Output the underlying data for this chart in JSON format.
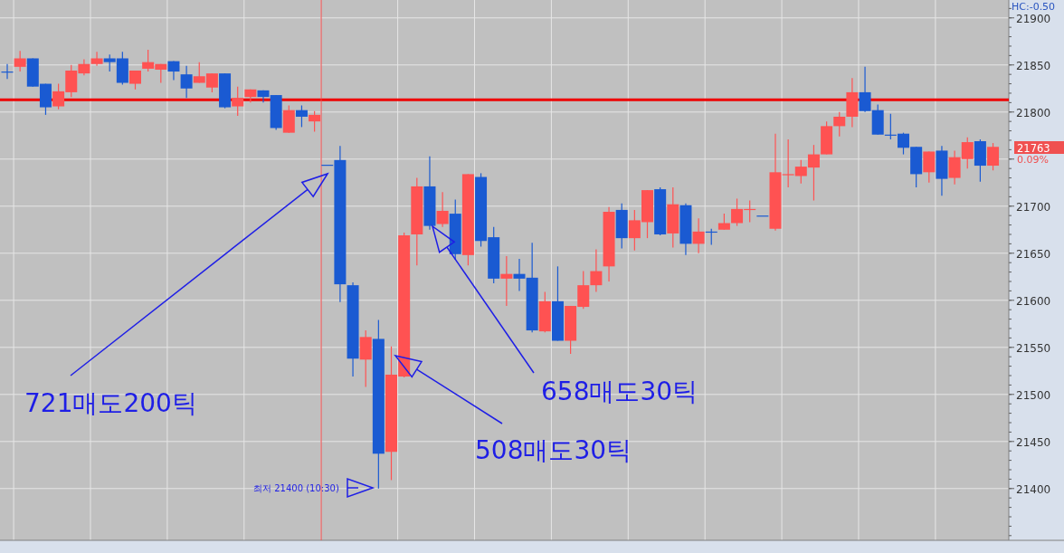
{
  "chart_data": {
    "type": "candlestick",
    "categories": [
      null,
      null,
      null,
      null,
      null,
      null,
      null,
      null,
      null,
      null,
      null,
      null,
      null,
      null,
      null,
      null,
      null,
      null,
      null,
      null,
      null,
      null,
      null,
      null,
      null,
      null,
      null,
      null,
      null,
      null,
      null,
      null,
      null,
      null,
      null,
      null,
      null,
      null,
      null,
      null,
      null,
      null,
      null,
      null,
      null,
      null,
      null,
      null,
      null,
      null,
      null,
      null,
      null,
      null,
      null,
      null,
      null,
      null,
      null,
      null,
      null,
      null,
      null,
      null,
      null,
      null,
      null,
      null,
      null,
      null,
      null,
      null,
      null,
      null,
      null,
      null,
      null,
      null
    ],
    "ohlc": [
      [
        21843,
        21851,
        21835,
        21842
      ],
      [
        21848,
        21865,
        21843,
        21857
      ],
      [
        21857,
        21857,
        21827,
        21827
      ],
      [
        21830,
        21830,
        21797,
        21805
      ],
      [
        21806,
        21830,
        21803,
        21822
      ],
      [
        21821,
        21850,
        21816,
        21844
      ],
      [
        21841,
        21856,
        21839,
        21851
      ],
      [
        21851,
        21864,
        21849,
        21857
      ],
      [
        21857,
        21861,
        21843,
        21853
      ],
      [
        21857,
        21864,
        21829,
        21831
      ],
      [
        21830,
        21844,
        21824,
        21844
      ],
      [
        21846,
        21866,
        21843,
        21853
      ],
      [
        21845,
        21851,
        21831,
        21851
      ],
      [
        21854,
        21854,
        21834,
        21843
      ],
      [
        21840,
        21849,
        21815,
        21825
      ],
      [
        21831,
        21853,
        21831,
        21838
      ],
      [
        21826,
        21841,
        21821,
        21841
      ],
      [
        21841,
        21841,
        21804,
        21805
      ],
      [
        21806,
        21827,
        21796,
        21815
      ],
      [
        21816,
        21824,
        21810,
        21824
      ],
      [
        21823,
        21823,
        21810,
        21816
      ],
      [
        21818,
        21818,
        21781,
        21783
      ],
      [
        21778,
        21807,
        21778,
        21802
      ],
      [
        21802,
        21807,
        21784,
        21795
      ],
      [
        21790,
        21801,
        21779,
        21797
      ],
      [
        21744,
        21744,
        21744,
        21744
      ],
      [
        21749,
        21764,
        21598,
        21617
      ],
      [
        21616,
        21619,
        21519,
        21538
      ],
      [
        21537,
        21568,
        21508,
        21561
      ],
      [
        21559,
        21579,
        21400,
        21437
      ],
      [
        21439,
        21551,
        21409,
        21521
      ],
      [
        21519,
        21672,
        21518,
        21669
      ],
      [
        21670,
        21730,
        21637,
        21721
      ],
      [
        21721,
        21753,
        21675,
        21679
      ],
      [
        21681,
        21715,
        21678,
        21695
      ],
      [
        21692,
        21707,
        21643,
        21649
      ],
      [
        21648,
        21734,
        21637,
        21734
      ],
      [
        21731,
        21735,
        21657,
        21663
      ],
      [
        21667,
        21678,
        21618,
        21623
      ],
      [
        21623,
        21647,
        21594,
        21628
      ],
      [
        21628,
        21644,
        21610,
        21623
      ],
      [
        21624,
        21661,
        21566,
        21568
      ],
      [
        21567,
        21609,
        21566,
        21599
      ],
      [
        21599,
        21636,
        21557,
        21557
      ],
      [
        21557,
        21594,
        21543,
        21594
      ],
      [
        21593,
        21631,
        21591,
        21616
      ],
      [
        21616,
        21654,
        21609,
        21631
      ],
      [
        21636,
        21699,
        21620,
        21694
      ],
      [
        21696,
        21703,
        21655,
        21666
      ],
      [
        21666,
        21696,
        21653,
        21685
      ],
      [
        21683,
        21717,
        21666,
        21717
      ],
      [
        21718,
        21720,
        21669,
        21670
      ],
      [
        21671,
        21720,
        21656,
        21702
      ],
      [
        21701,
        21703,
        21648,
        21660
      ],
      [
        21660,
        21687,
        21650,
        21673
      ],
      [
        21673,
        21676,
        21659,
        21672
      ],
      [
        21675,
        21692,
        21675,
        21682
      ],
      [
        21682,
        21708,
        21679,
        21697
      ],
      [
        21696,
        21706,
        21683,
        21697
      ],
      [
        21690,
        21690,
        21690,
        21690
      ],
      [
        21676,
        21777,
        21674,
        21736
      ],
      [
        21733,
        21771,
        21720,
        21734
      ],
      [
        21732,
        21749,
        21724,
        21742
      ],
      [
        21741,
        21765,
        21706,
        21755
      ],
      [
        21755,
        21790,
        21755,
        21785
      ],
      [
        21785,
        21800,
        21774,
        21795
      ],
      [
        21795,
        21836,
        21784,
        21821
      ],
      [
        21821,
        21848,
        21800,
        21801
      ],
      [
        21802,
        21808,
        21776,
        21776
      ],
      [
        21776,
        21798,
        21771,
        21775
      ],
      [
        21777,
        21778,
        21755,
        21762
      ],
      [
        21763,
        21763,
        21720,
        21734
      ],
      [
        21736,
        21758,
        21725,
        21758
      ],
      [
        21759,
        21764,
        21711,
        21729
      ],
      [
        21730,
        21759,
        21723,
        21752
      ],
      [
        21750,
        21773,
        21740,
        21768
      ],
      [
        21769,
        21771,
        21726,
        21743
      ],
      [
        21743,
        21767,
        21738,
        21763
      ]
    ],
    "colors": [
      "#1a5ad2",
      "#ff5252",
      "#1a5ad2",
      "#1a5ad2",
      "#ff5252",
      "#ff5252",
      "#ff5252",
      "#ff5252",
      "#1a5ad2",
      "#1a5ad2",
      "#ff5252",
      "#ff5252",
      "#ff5252",
      "#1a5ad2",
      "#1a5ad2",
      "#ff5252",
      "#ff5252",
      "#1a5ad2",
      "#ff5252",
      "#ff5252",
      "#1a5ad2",
      "#1a5ad2",
      "#ff5252",
      "#1a5ad2",
      "#ff5252",
      "#1a5ad2",
      "#1a5ad2",
      "#1a5ad2",
      "#ff5252",
      "#1a5ad2",
      "#ff5252",
      "#ff5252",
      "#ff5252",
      "#1a5ad2",
      "#ff5252",
      "#1a5ad2",
      "#ff5252",
      "#1a5ad2",
      "#1a5ad2",
      "#ff5252",
      "#1a5ad2",
      "#1a5ad2",
      "#ff5252",
      "#1a5ad2",
      "#ff5252",
      "#ff5252",
      "#ff5252",
      "#ff5252",
      "#1a5ad2",
      "#ff5252",
      "#ff5252",
      "#1a5ad2",
      "#ff5252",
      "#1a5ad2",
      "#ff5252",
      "#1a5ad2",
      "#ff5252",
      "#ff5252",
      "#ff5252",
      "#1a5ad2",
      "#ff5252",
      "#ff5252",
      "#ff5252",
      "#ff5252",
      "#ff5252",
      "#ff5252",
      "#ff5252",
      "#1a5ad2",
      "#1a5ad2",
      "#1a5ad2",
      "#1a5ad2",
      "#1a5ad2",
      "#ff5252",
      "#1a5ad2",
      "#ff5252",
      "#ff5252",
      "#1a5ad2",
      "#ff5252"
    ],
    "ylim": [
      21345,
      21919
    ],
    "yticks": [
      21400,
      21450,
      21500,
      21550,
      21600,
      21650,
      21700,
      {
        "value": 21750,
        "label": null
      },
      21800,
      21850,
      21900
    ],
    "grid": true,
    "ref_lines": [
      {
        "axis": "y",
        "value": 21813,
        "color": "#ee0000"
      }
    ],
    "annotations": [
      "721매도200틱",
      "508매도30틱",
      "658매도30틱",
      "최저 21400 (10:30)",
      "HC:-0.50",
      "21763",
      "0.09%"
    ]
  }
}
